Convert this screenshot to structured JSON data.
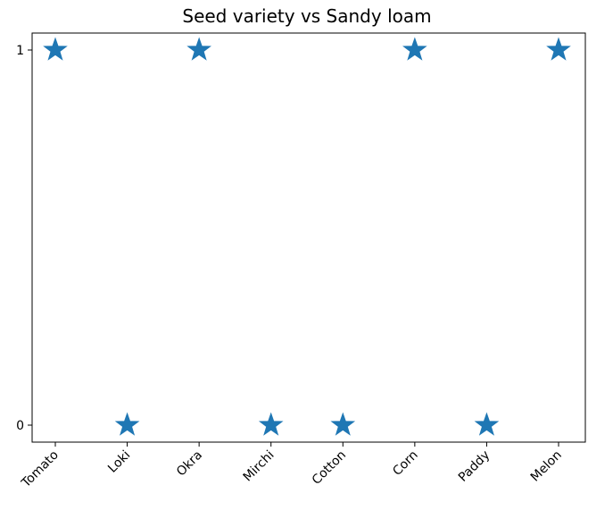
{
  "chart_data": {
    "type": "scatter",
    "title": "Seed variety vs Sandy loam",
    "xlabel": "",
    "ylabel": "",
    "categories": [
      "Tomato",
      "Loki",
      "Okra",
      "Mirchi",
      "Cotton",
      "Corn",
      "Paddy",
      "Melon"
    ],
    "values": [
      1,
      0,
      1,
      0,
      0,
      1,
      0,
      1
    ],
    "y_ticks": [
      "0",
      "1"
    ],
    "ylim": [
      0,
      1
    ],
    "marker": "star",
    "color": "#1f77b4",
    "grid": false,
    "legend": "none"
  }
}
